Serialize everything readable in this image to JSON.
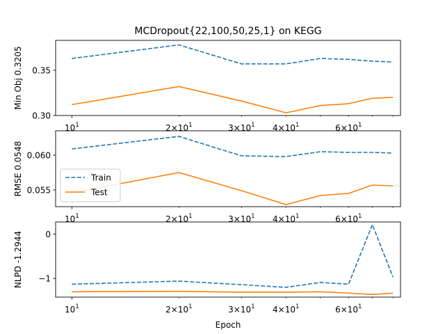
{
  "title": "MCDropout{22,100,50,25,1} on KEGG",
  "xlabel": "Epoch",
  "colors": {
    "train": "#1f77b4",
    "test": "#ff7f0e"
  },
  "legend": {
    "placement": "left",
    "entries": [
      "Train",
      "Test"
    ]
  },
  "chart_data": [
    {
      "type": "line",
      "xscale": "log",
      "x": [
        10,
        20,
        30,
        40,
        50,
        60,
        70,
        80
      ],
      "xticks": [
        {
          "base": "10",
          "exp": "1",
          "value": 10
        },
        {
          "base": "2×10",
          "exp": "1",
          "value": 20
        },
        {
          "base": "3×10",
          "exp": "1",
          "value": 30
        },
        {
          "base": "4×10",
          "exp": "1",
          "value": 40
        },
        {
          "base": "6×10",
          "exp": "1",
          "value": 60
        }
      ],
      "ylabel": "Min Obj 0.3205",
      "ylim": [
        0.3,
        0.383
      ],
      "yticks": [
        {
          "label": "0.30",
          "value": 0.3
        },
        {
          "label": "0.35",
          "value": 0.35
        }
      ],
      "series": [
        {
          "name": "Train",
          "style": "dashed",
          "values": [
            0.363,
            0.378,
            0.357,
            0.357,
            0.363,
            0.362,
            0.36,
            0.359
          ]
        },
        {
          "name": "Test",
          "style": "solid",
          "values": [
            0.312,
            0.332,
            0.316,
            0.303,
            0.311,
            0.313,
            0.319,
            0.32
          ]
        }
      ]
    },
    {
      "type": "line",
      "xscale": "log",
      "x": [
        10,
        20,
        30,
        40,
        50,
        60,
        70,
        80
      ],
      "xticks": [
        {
          "base": "10",
          "exp": "1",
          "value": 10
        },
        {
          "base": "2×10",
          "exp": "1",
          "value": 20
        },
        {
          "base": "3×10",
          "exp": "1",
          "value": 30
        },
        {
          "base": "4×10",
          "exp": "1",
          "value": 40
        },
        {
          "base": "6×10",
          "exp": "1",
          "value": 60
        }
      ],
      "ylabel": "RMSE 0.0548",
      "ylim": [
        0.0526,
        0.0635
      ],
      "yticks": [
        {
          "label": "0.055",
          "value": 0.055
        },
        {
          "label": "0.060",
          "value": 0.06
        }
      ],
      "series": [
        {
          "name": "Train",
          "style": "dashed",
          "values": [
            0.0609,
            0.0627,
            0.0599,
            0.0598,
            0.0605,
            0.0604,
            0.0604,
            0.0603
          ]
        },
        {
          "name": "Test",
          "style": "solid",
          "values": [
            0.0546,
            0.0575,
            0.0549,
            0.0529,
            0.0542,
            0.0545,
            0.0557,
            0.0556
          ]
        }
      ]
    },
    {
      "type": "line",
      "xscale": "log",
      "x": [
        10,
        20,
        30,
        40,
        50,
        60,
        70,
        80
      ],
      "xticks": [
        {
          "base": "10",
          "exp": "1",
          "value": 10
        },
        {
          "base": "2×10",
          "exp": "1",
          "value": 20
        },
        {
          "base": "3×10",
          "exp": "1",
          "value": 30
        },
        {
          "base": "4×10",
          "exp": "1",
          "value": 40
        },
        {
          "base": "6×10",
          "exp": "1",
          "value": 60
        }
      ],
      "ylabel": "NLPD -1.2944",
      "ylim": [
        -1.42,
        0.27
      ],
      "yticks": [
        {
          "label": "−1",
          "value": -1
        },
        {
          "label": "0",
          "value": 0
        }
      ],
      "series": [
        {
          "name": "Train",
          "style": "dashed",
          "values": [
            -1.13,
            -1.06,
            -1.14,
            -1.2,
            -1.09,
            -1.13,
            0.21,
            -0.97
          ]
        },
        {
          "name": "Test",
          "style": "solid",
          "values": [
            -1.3,
            -1.29,
            -1.31,
            -1.31,
            -1.3,
            -1.33,
            -1.36,
            -1.33
          ]
        }
      ]
    }
  ]
}
